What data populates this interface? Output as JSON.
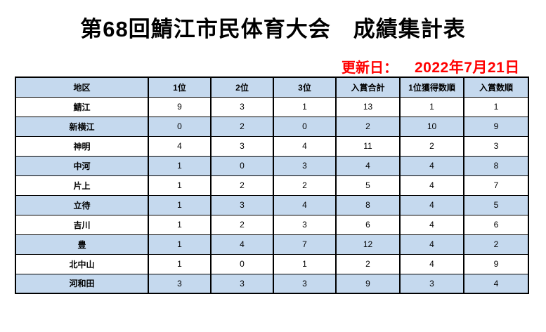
{
  "title": "第68回鯖江市民体育大会　成績集計表",
  "update": {
    "label": "更新日：",
    "date": "2022年7月21日"
  },
  "table": {
    "columns": [
      "地区",
      "1位",
      "2位",
      "3位",
      "入賞合計",
      "1位獲得数順",
      "入賞数順"
    ],
    "rows": [
      {
        "district": "鯖江",
        "values": [
          "9",
          "3",
          "1",
          "13",
          "1",
          "1"
        ]
      },
      {
        "district": "新横江",
        "values": [
          "0",
          "2",
          "0",
          "2",
          "10",
          "9"
        ]
      },
      {
        "district": "神明",
        "values": [
          "4",
          "3",
          "4",
          "11",
          "2",
          "3"
        ]
      },
      {
        "district": "中河",
        "values": [
          "1",
          "0",
          "3",
          "4",
          "4",
          "8"
        ]
      },
      {
        "district": "片上",
        "values": [
          "1",
          "2",
          "2",
          "5",
          "4",
          "7"
        ]
      },
      {
        "district": "立待",
        "values": [
          "1",
          "3",
          "4",
          "8",
          "4",
          "5"
        ]
      },
      {
        "district": "吉川",
        "values": [
          "1",
          "2",
          "3",
          "6",
          "4",
          "6"
        ]
      },
      {
        "district": "豊",
        "values": [
          "1",
          "4",
          "7",
          "12",
          "4",
          "2"
        ]
      },
      {
        "district": "北中山",
        "values": [
          "1",
          "0",
          "1",
          "2",
          "4",
          "9"
        ]
      },
      {
        "district": "河和田",
        "values": [
          "3",
          "3",
          "3",
          "9",
          "3",
          "4"
        ]
      }
    ]
  },
  "colors": {
    "bg": "#ffffff",
    "accent_blue": "#c5d9ee",
    "date_red": "#ff0000",
    "border_color": "#000000",
    "text_color": "#000000"
  }
}
